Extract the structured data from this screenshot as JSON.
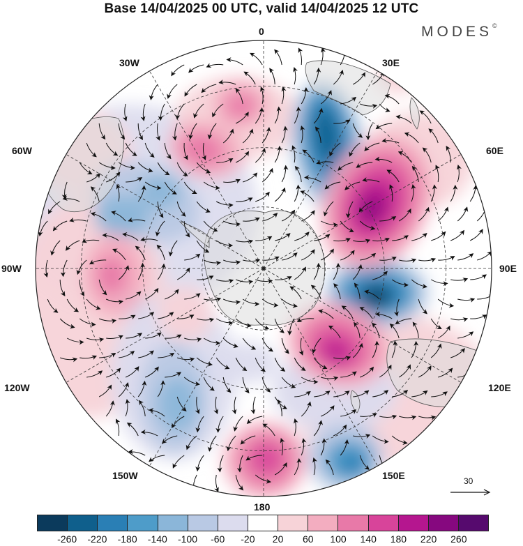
{
  "title": "Base 14/04/2025 00 UTC, valid 14/04/2025 12 UTC",
  "brand": "MODES",
  "brand_mark": "©",
  "longitude_labels": {
    "top": "0",
    "top_left": "30W",
    "top_right": "30E",
    "upper_left": "60W",
    "upper_right": "60E",
    "left": "90W",
    "right": "90E",
    "lower_left": "120W",
    "lower_right": "120E",
    "bottom_left": "150W",
    "bottom_right": "150E",
    "bottom": "180"
  },
  "reference_vector": "30",
  "colorbar": {
    "ticks": [
      "-260",
      "-220",
      "-180",
      "-140",
      "-100",
      "-60",
      "-20",
      "20",
      "60",
      "100",
      "140",
      "180",
      "220",
      "260"
    ],
    "colors": [
      "#0b3a5c",
      "#0f5f8c",
      "#2a7fb5",
      "#4e9cc9",
      "#8bb6d9",
      "#b9c9e4",
      "#dcdcee",
      "#ffffff",
      "#f7d3d8",
      "#f3adc0",
      "#e879a8",
      "#d8449a",
      "#b5168f",
      "#86087f",
      "#560a6e"
    ]
  },
  "map_colors": {
    "land": "#dcdcdc",
    "coast": "#555555",
    "grid": "#333333",
    "arrow": "#111111"
  }
}
